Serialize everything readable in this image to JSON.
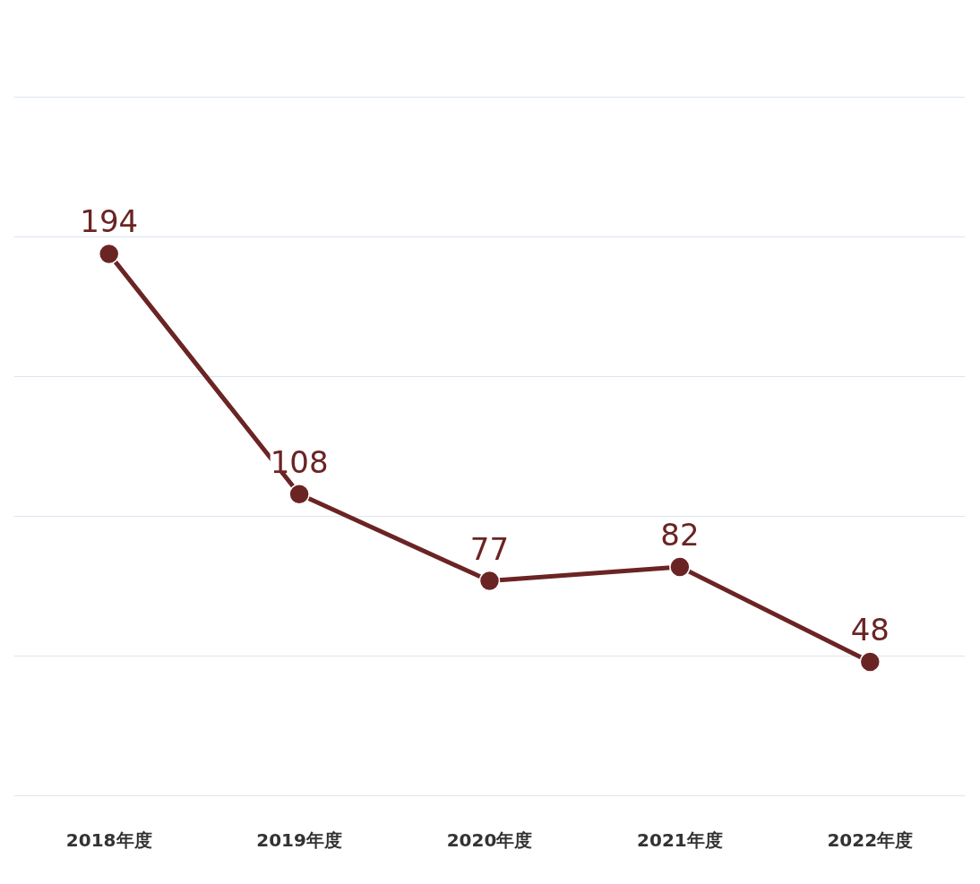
{
  "chart_data": {
    "type": "line",
    "categories": [
      "2018年度",
      "2019年度",
      "2020年度",
      "2021年度",
      "2022年度"
    ],
    "series": [
      {
        "color": "#6b2424",
        "values": [
          194,
          108,
          77,
          82,
          48
        ]
      }
    ],
    "tick_labels": "x",
    "grid": "y",
    "marker": "circle",
    "line_style": "solid",
    "data_labels": true
  }
}
